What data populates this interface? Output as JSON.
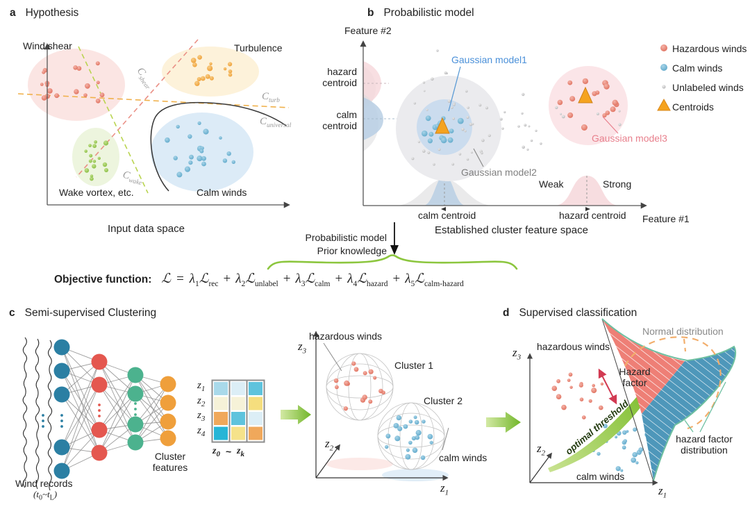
{
  "panel_a": {
    "tag": "a",
    "title": "Hypothesis",
    "cluster_labels": {
      "wind_shear": "Wind shear",
      "turbulence": "Turbulence",
      "wake_vortex": "Wake vortex, etc.",
      "calm_winds": "Calm winds"
    },
    "boundary_labels": {
      "shear": {
        "symbol": "C",
        "sub": "shear"
      },
      "turb": {
        "symbol": "C",
        "sub": "turb"
      },
      "universal": {
        "symbol": "C",
        "sub": "universal"
      },
      "wake": {
        "symbol": "C",
        "sub": "wake"
      }
    },
    "caption": "Input data space"
  },
  "panel_b": {
    "tag": "b",
    "title": "Probabilistic model",
    "axis_y": "Feature #2",
    "axis_x": "Feature #1",
    "hazard_centroid_y": {
      "line1": "hazard",
      "line2": "centroid"
    },
    "calm_centroid_y": {
      "line1": "calm",
      "line2": "centroid"
    },
    "gaussian1": "Gaussian model1",
    "gaussian2": "Gaussian model2",
    "gaussian3": "Gaussian model3",
    "weak": "Weak",
    "strong": "Strong",
    "calm_centroid_x": "calm centroid",
    "hazard_centroid_x": "hazard centroid",
    "caption": "Established cluster feature space"
  },
  "legend": {
    "items": [
      {
        "label": "Hazardous winds",
        "marker": "red-ball"
      },
      {
        "label": "Calm winds",
        "marker": "blue-ball"
      },
      {
        "label": "Unlabeled winds",
        "marker": "gray-ball"
      },
      {
        "label": "Centroids",
        "marker": "orange-triangle"
      }
    ]
  },
  "connector": {
    "line1": "Probabilistic model",
    "line2": "Prior knowledge"
  },
  "objective": {
    "label": "Objective function:",
    "lhs": "ℒ",
    "eq": "=",
    "terms": [
      {
        "plus": "",
        "lambda": "λ",
        "lsub": "1",
        "L": "ℒ",
        "sub": "rec"
      },
      {
        "plus": "+",
        "lambda": "λ",
        "lsub": "2",
        "L": "ℒ",
        "sub": "unlabel"
      },
      {
        "plus": "+",
        "lambda": "λ",
        "lsub": "3",
        "L": "ℒ",
        "sub": "calm"
      },
      {
        "plus": "+",
        "lambda": "λ",
        "lsub": "4",
        "L": "ℒ",
        "sub": "hazard"
      },
      {
        "plus": "+",
        "lambda": "λ",
        "lsub": "5",
        "L": "ℒ",
        "sub": "calm-hazard"
      }
    ]
  },
  "panel_c": {
    "tag": "c",
    "title": "Semi-supervised Clustering",
    "wind_records": "Wind records",
    "time_range": {
      "p1": "(t",
      "s1": "0",
      "p2": "~t",
      "s2": "L",
      "p3": ")"
    },
    "cluster_features": {
      "line1": "Cluster",
      "line2": "features"
    },
    "z_rows": [
      {
        "main": "z",
        "sub": "1"
      },
      {
        "main": "z",
        "sub": "2"
      },
      {
        "main": "z",
        "sub": "3"
      },
      {
        "main": "z",
        "sub": "4"
      }
    ],
    "z_cols": {
      "z0": {
        "main": "z",
        "sub": "0"
      },
      "tilde": "~",
      "zk": {
        "main": "z",
        "sub": "k"
      }
    },
    "matrix_colors": [
      [
        "#a9d9ea",
        "#f6f2d8",
        "#f0a85b",
        "#27b5d6"
      ],
      [
        "#dceef6",
        "#f6f2d8",
        "#5ec3dd",
        "#f5e28a"
      ],
      [
        "#5ec3dd",
        "#f5de7e",
        "#dceef6",
        "#f0a85b"
      ]
    ]
  },
  "cluster_plot": {
    "hazardous": "hazardous winds",
    "calm": "calm winds",
    "cluster1": "Cluster 1",
    "cluster2": "Cluster 2",
    "axes": {
      "z1": {
        "main": "z",
        "sub": "1"
      },
      "z2": {
        "main": "z",
        "sub": "2"
      },
      "z3": {
        "main": "z",
        "sub": "3"
      }
    }
  },
  "panel_d": {
    "tag": "d",
    "title": "Supervised classification",
    "hazardous": "hazardous winds",
    "calm": "calm winds",
    "hazard_factor": {
      "line1": "Hazard",
      "line2": "factor"
    },
    "optimal_threshold": "optimal threshold",
    "normal_distribution": "Normal distribution",
    "hazard_factor_distribution": {
      "line1": "hazard factor",
      "line2": "distribution"
    },
    "axes": {
      "z1": {
        "main": "z",
        "sub": "1"
      },
      "z2": {
        "main": "z",
        "sub": "2"
      },
      "z3": {
        "main": "z",
        "sub": "3"
      }
    }
  },
  "colors": {
    "hazardous_dot": "#dd6a57",
    "calm_dot": "#5aa5c8",
    "unlabeled_dot": "#b5b5b5",
    "turbulence_dot": "#ed9a2c",
    "wake_dot": "#83ba3b",
    "centroid_orange": "#f5a31f",
    "accent_green": "#7cbd2c",
    "model1_label": "#4a90d9",
    "model3_label": "#e8808d",
    "normal_dist_dashed": "#f2ae6c",
    "hazard_dist_teal": "#6dbfa0",
    "hazard_arrow_red": "#d23a52"
  }
}
